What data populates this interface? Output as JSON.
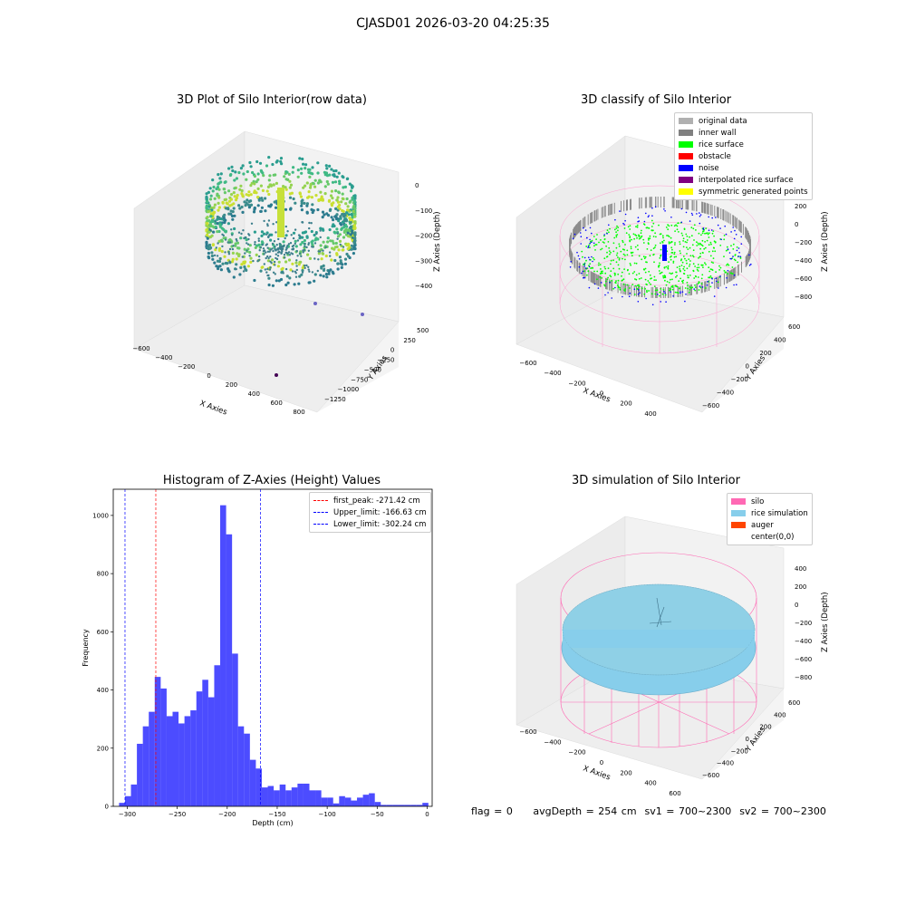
{
  "figure": {
    "title": "CJASD01 2026-03-20 04:25:35",
    "footer": "flag = 0     avgDepth = 254 cm  sv1 = 700~2300  sv2 = 700~2300"
  },
  "panels": {
    "raw": {
      "title": "3D Plot of Silo Interior(row data)",
      "xlabel": "X Axies",
      "ylabel": "Y Axies",
      "zlabel": "Z Axies (Depth)",
      "xticks": [
        "−600",
        "−400",
        "−200",
        "0",
        "200",
        "400",
        "600",
        "800"
      ],
      "yticks": [
        "−1250",
        "−1000",
        "−750",
        "−500",
        "−250",
        "0",
        "250",
        "500"
      ],
      "zticks": [
        "−400",
        "−300",
        "−200",
        "−100",
        "0"
      ]
    },
    "classify": {
      "title": "3D classify of Silo Interior",
      "xlabel": "X Axies",
      "ylabel": "Y Axies",
      "zlabel": "Z Axies (Depth)",
      "xticks": [
        "−600",
        "−400",
        "−200",
        "0",
        "200",
        "400",
        "600"
      ],
      "yticks": [
        "−600",
        "−400",
        "−200",
        "0",
        "200",
        "400",
        "600"
      ],
      "zticks": [
        "−800",
        "−600",
        "−400",
        "−200",
        "0",
        "200"
      ],
      "legend": [
        {
          "label": "original data",
          "color": "#b0b0b0"
        },
        {
          "label": "inner wall",
          "color": "#808080"
        },
        {
          "label": "rice surface",
          "color": "#00ff00"
        },
        {
          "label": "obstacle",
          "color": "#ff0000"
        },
        {
          "label": "noise",
          "color": "#0000ff"
        },
        {
          "label": "interpolated rice surface",
          "color": "#800080"
        },
        {
          "label": "symmetric generated points",
          "color": "#ffff00"
        }
      ]
    },
    "simulation": {
      "title": "3D simulation of Silo Interior",
      "xlabel": "X Axies",
      "ylabel": "Y Axies",
      "zlabel": "Z Axies (Depth)",
      "xticks": [
        "−600",
        "−400",
        "−200",
        "0",
        "200",
        "400",
        "600"
      ],
      "yticks": [
        "−600",
        "−400",
        "−200",
        "0",
        "200",
        "400",
        "600"
      ],
      "zticks": [
        "−800",
        "−600",
        "−400",
        "−200",
        "0",
        "200",
        "400"
      ],
      "legend": [
        {
          "label": "silo",
          "color": "#ff69b4"
        },
        {
          "label": "rice simulation",
          "color": "#87ceeb"
        },
        {
          "label": "auger",
          "color": "#ff4500"
        },
        {
          "label": "center(0,0)",
          "color": "#ffffff"
        }
      ]
    }
  },
  "chart_data": {
    "type": "bar",
    "title": "Histogram of Z-Axies (Height) Values",
    "xlabel": "Depth (cm)",
    "ylabel": "Frequency",
    "xlim": [
      -314,
      5
    ],
    "ylim": [
      0,
      1090
    ],
    "xticks": [
      -300,
      -250,
      -200,
      -150,
      -100,
      -50,
      0
    ],
    "yticks": [
      0,
      200,
      400,
      600,
      800,
      1000
    ],
    "bar_color": "#0000ff",
    "bin_width": 5.95,
    "bin_starts": [
      -308.2,
      -302.25,
      -296.3,
      -290.35,
      -284.4,
      -278.45,
      -272.5,
      -266.55,
      -260.6,
      -254.65,
      -248.7,
      -242.75,
      -236.8,
      -230.85,
      -224.9,
      -218.95,
      -213.0,
      -207.05,
      -201.1,
      -195.15,
      -189.2,
      -183.25,
      -177.3,
      -171.35,
      -165.4,
      -159.45,
      -153.5,
      -147.55,
      -141.6,
      -135.65,
      -129.7,
      -123.75,
      -117.8,
      -111.85,
      -105.9,
      -99.95,
      -94.0,
      -88.05,
      -82.1,
      -76.15,
      -70.2,
      -64.25,
      -58.3,
      -52.35,
      -46.4,
      -40.45,
      -34.5,
      -28.55,
      -22.6,
      -16.65,
      -10.7,
      -4.75
    ],
    "counts": [
      12,
      35,
      75,
      215,
      275,
      325,
      445,
      405,
      310,
      325,
      285,
      310,
      330,
      395,
      435,
      375,
      485,
      1035,
      935,
      525,
      275,
      250,
      160,
      130,
      65,
      70,
      55,
      75,
      55,
      65,
      78,
      78,
      55,
      55,
      30,
      30,
      10,
      35,
      30,
      20,
      30,
      40,
      45,
      15,
      5,
      5,
      5,
      5,
      5,
      5,
      5,
      12
    ],
    "lines": [
      {
        "label": "first_peak: -271.42 cm",
        "x": -271.42,
        "color": "#ff0000"
      },
      {
        "label": "Upper_limit: -166.63 cm",
        "x": -166.63,
        "color": "#0000ff"
      },
      {
        "label": "Lower_limit: -302.24 cm",
        "x": -302.24,
        "color": "#0000ff"
      }
    ],
    "legend_position": "top-right"
  }
}
